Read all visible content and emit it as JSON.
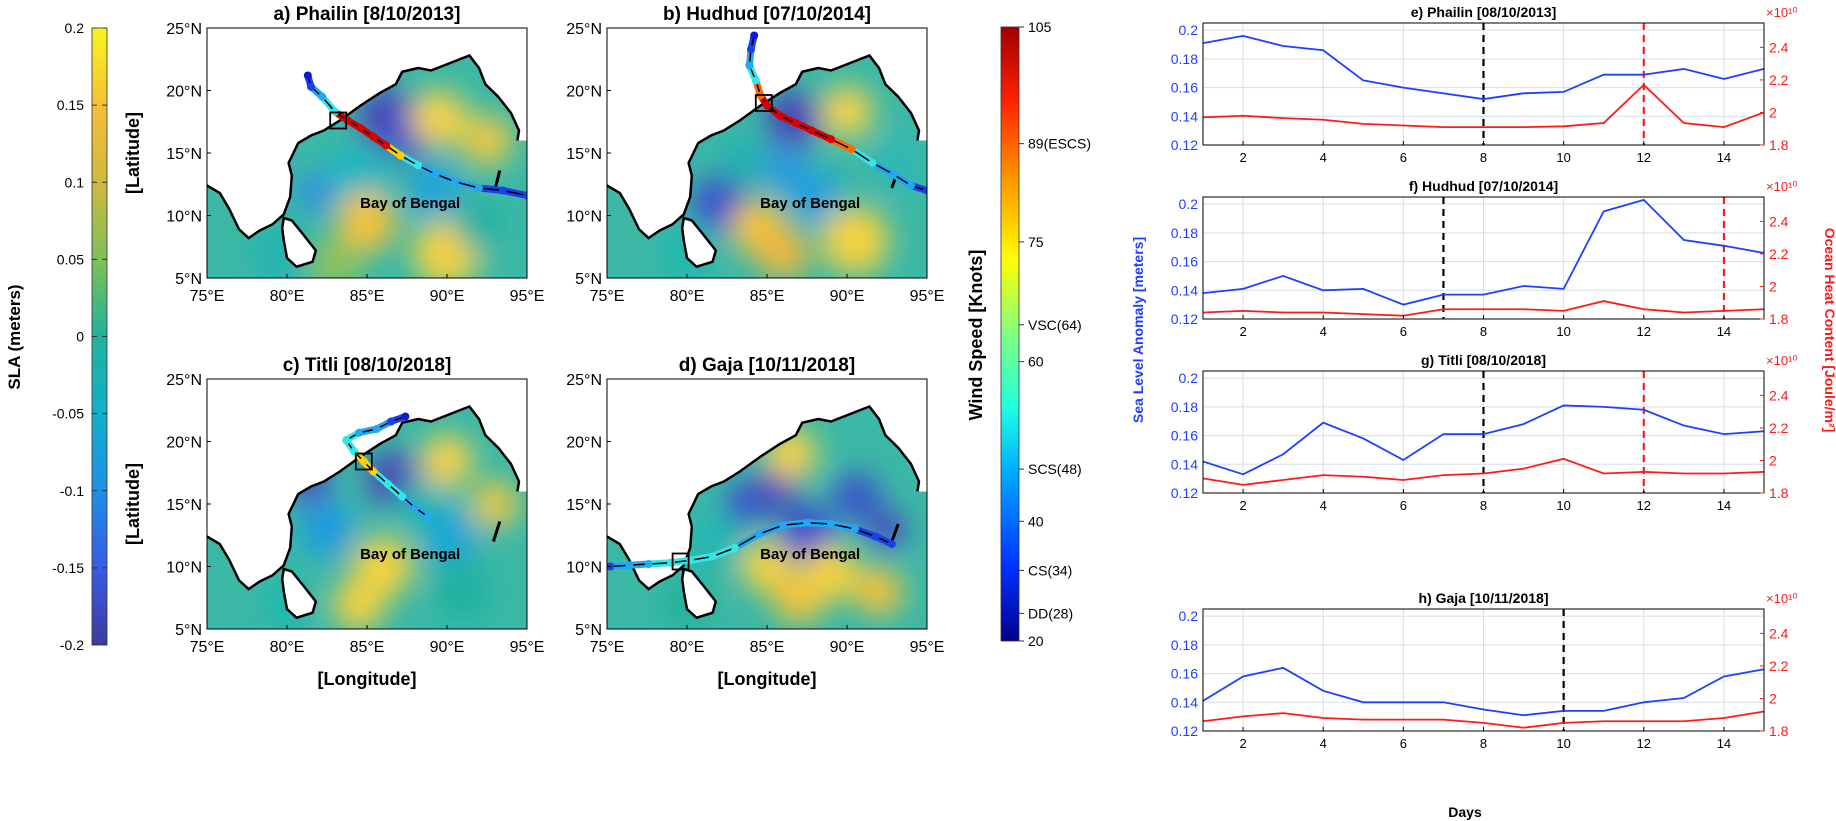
{
  "colors": {
    "sla_low": "#3f3aa0",
    "sla_mid": "#20b29a",
    "sla_high": "#f9f51c",
    "wind_low": "#00008f",
    "wind_high": "#a00000",
    "sla_line": "#1f3fff",
    "ohc_line": "#ff1a1a",
    "land": "#ffffff",
    "coast": "#000000"
  },
  "sla_colorbar": {
    "label": "SLA (meters)",
    "ticks": [
      "0.2",
      "0.15",
      "0.1",
      "0.05",
      "0",
      "-0.05",
      "-0.1",
      "-0.15",
      "-0.2"
    ]
  },
  "wind_colorbar": {
    "label": "Wind Speed [Knots]",
    "ticks": [
      "105",
      "89(ESCS)",
      "75",
      "VSC(64)",
      "60",
      "SCS(48)",
      "40",
      "CS(34)",
      "DD(28)",
      "20"
    ]
  },
  "maps": {
    "ylabel": "[Latitude]",
    "xlabel": "[Longitude]",
    "lon_ticks": [
      "75°E",
      "80°E",
      "85°E",
      "90°E",
      "95°E"
    ],
    "lat_ticks": [
      "25°N",
      "20°N",
      "15°N",
      "10°N",
      "5°N"
    ],
    "region_label": "Bay of Bengal",
    "panels": [
      {
        "title": "a)  Phailin [8/10/2013]"
      },
      {
        "title": "b)  Hudhud [07/10/2014]"
      },
      {
        "title": "c)  Titli [08/10/2018]"
      },
      {
        "title": "d)  Gaja [10/11/2018]"
      }
    ]
  },
  "timeseries": {
    "xlabel": "Days",
    "ylabel_left": "Sea Level Anomaly [meters]",
    "ylabel_right": "Ocean Heat Content [Joule/m²]",
    "right_exponent": "×10¹⁰",
    "x_ticks": [
      "2",
      "4",
      "6",
      "8",
      "10",
      "12",
      "14"
    ],
    "left_ticks": [
      "0.2",
      "0.18",
      "0.16",
      "0.14",
      "0.12"
    ],
    "right_ticks": [
      "2.4",
      "2.2",
      "2",
      "1.8"
    ]
  },
  "chart_data": [
    {
      "type": "line",
      "title": "e) Phailin [08/10/2013]",
      "xlim": [
        1,
        15
      ],
      "ylim": [
        0.12,
        0.205
      ],
      "y2lim": [
        1.8,
        2.55
      ],
      "x": [
        1,
        2,
        3,
        4,
        5,
        6,
        7,
        8,
        9,
        10,
        11,
        12,
        13,
        14,
        15
      ],
      "series": [
        {
          "axis": "left",
          "values": [
            0.191,
            0.196,
            0.189,
            0.186,
            0.165,
            0.16,
            0.156,
            0.152,
            0.156,
            0.157,
            0.169,
            0.169,
            0.173,
            0.166,
            0.173
          ]
        },
        {
          "axis": "right",
          "values": [
            1.97,
            1.98,
            1.965,
            1.955,
            1.93,
            1.92,
            1.91,
            1.91,
            1.91,
            1.915,
            1.935,
            2.17,
            1.935,
            1.91,
            2.0
          ]
        }
      ],
      "vlines": [
        {
          "x": 8,
          "color": "black"
        },
        {
          "x": 12,
          "color": "red"
        }
      ]
    },
    {
      "type": "line",
      "title": "f) Hudhud [07/10/2014]",
      "xlim": [
        1,
        15
      ],
      "ylim": [
        0.12,
        0.205
      ],
      "y2lim": [
        1.8,
        2.55
      ],
      "x": [
        1,
        2,
        3,
        4,
        5,
        6,
        7,
        8,
        9,
        10,
        11,
        12,
        13,
        14,
        15
      ],
      "series": [
        {
          "axis": "left",
          "values": [
            0.138,
            0.141,
            0.15,
            0.14,
            0.141,
            0.13,
            0.137,
            0.137,
            0.143,
            0.141,
            0.195,
            0.203,
            0.175,
            0.171,
            0.166
          ]
        },
        {
          "axis": "right",
          "values": [
            1.84,
            1.85,
            1.84,
            1.84,
            1.83,
            1.82,
            1.86,
            1.86,
            1.86,
            1.85,
            1.91,
            1.86,
            1.84,
            1.85,
            1.86
          ]
        }
      ],
      "vlines": [
        {
          "x": 7,
          "color": "black"
        },
        {
          "x": 14,
          "color": "red"
        }
      ]
    },
    {
      "type": "line",
      "title": "g) Titli [08/10/2018]",
      "xlim": [
        1,
        15
      ],
      "ylim": [
        0.12,
        0.205
      ],
      "y2lim": [
        1.8,
        2.55
      ],
      "x": [
        1,
        2,
        3,
        4,
        5,
        6,
        7,
        8,
        9,
        10,
        11,
        12,
        13,
        14,
        15
      ],
      "series": [
        {
          "axis": "left",
          "values": [
            0.142,
            0.133,
            0.147,
            0.169,
            0.158,
            0.143,
            0.161,
            0.161,
            0.168,
            0.181,
            0.18,
            0.178,
            0.167,
            0.161,
            0.163
          ]
        },
        {
          "axis": "right",
          "values": [
            1.89,
            1.85,
            1.88,
            1.91,
            1.9,
            1.88,
            1.91,
            1.92,
            1.95,
            2.01,
            1.92,
            1.93,
            1.92,
            1.92,
            1.93
          ]
        }
      ],
      "vlines": [
        {
          "x": 8,
          "color": "black"
        },
        {
          "x": 12,
          "color": "red"
        }
      ]
    },
    {
      "type": "line",
      "title": "h) Gaja [10/11/2018]",
      "xlim": [
        1,
        15
      ],
      "ylim": [
        0.12,
        0.205
      ],
      "y2lim": [
        1.8,
        2.55
      ],
      "x": [
        1,
        2,
        3,
        4,
        5,
        6,
        7,
        8,
        9,
        10,
        11,
        12,
        13,
        14,
        15
      ],
      "series": [
        {
          "axis": "left",
          "values": [
            0.141,
            0.158,
            0.164,
            0.148,
            0.14,
            0.14,
            0.14,
            0.135,
            0.131,
            0.134,
            0.134,
            0.14,
            0.143,
            0.158,
            0.163
          ]
        },
        {
          "axis": "right",
          "values": [
            1.86,
            1.89,
            1.91,
            1.88,
            1.87,
            1.87,
            1.87,
            1.85,
            1.82,
            1.85,
            1.86,
            1.86,
            1.86,
            1.88,
            1.92
          ]
        }
      ],
      "vlines": [
        {
          "x": 10,
          "color": "black"
        }
      ]
    }
  ]
}
